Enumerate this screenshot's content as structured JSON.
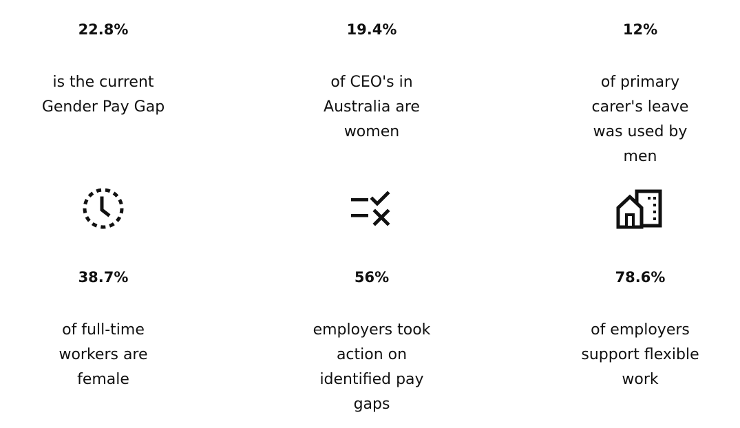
{
  "stats_top": [
    {
      "value": "22.8%",
      "description": "is the current\nGender Pay Gap"
    },
    {
      "value": "19.4%",
      "description": "of CEO's in\nAustralia are\nwomen"
    },
    {
      "value": "12%",
      "description": "of primary\ncarer's leave\nwas used by\nmen"
    }
  ],
  "icons": [
    "dashed-clock-icon",
    "checklist-check-cross-icon",
    "house-building-icon"
  ],
  "stats_bottom": [
    {
      "value": "38.7%",
      "description": "of full-time\nworkers are\nfemale"
    },
    {
      "value": "56%",
      "description": "employers took\naction on\nidentified pay\ngaps"
    },
    {
      "value": "78.6%",
      "description": "of employers\nsupport flexible\nwork"
    }
  ],
  "colors": {
    "text": "#111111",
    "icon": "#111111",
    "background": "#ffffff"
  }
}
